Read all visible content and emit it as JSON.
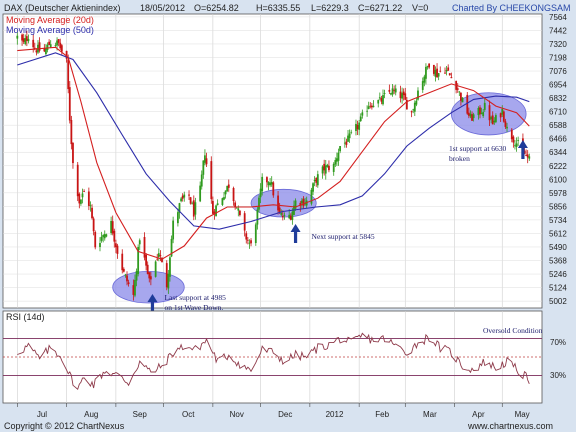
{
  "header": {
    "title": "DAX (Deutscher Aktienindex)",
    "date": "18/05/2012",
    "open": "O=6254.82",
    "high": "H=6335.55",
    "low": "L=6229.3",
    "close": "C=6271.22",
    "volume": "V=0",
    "credit": "Charted By CHEEKONGSAM"
  },
  "footer": {
    "copyright": "Copyright © 2012 ChartNexus",
    "url": "www.chartnexus.com"
  },
  "colors": {
    "background": "#d8e3f0",
    "plot": "#ffffff",
    "candle_up": "#2f9a1e",
    "candle_down": "#c81414",
    "ma20": "#d42020",
    "ma50": "#2d2daa",
    "rsi_line": "#8e3a4a",
    "rsi_level": "#7a2a5a",
    "highlight": "#8a8ae8"
  },
  "chart_data": [
    {
      "type": "candlestick",
      "title": "DAX (Deutscher Aktienindex)",
      "legend": [
        "Moving Average (20d)",
        "Moving Average (50d)"
      ],
      "legend_placement": "top-left",
      "x_tick_labels": [
        "Jul",
        "Aug",
        "Sep",
        "Oct",
        "Nov",
        "Dec",
        "2012",
        "Feb",
        "Mar",
        "Apr",
        "May"
      ],
      "y_tick_labels": [
        "5002",
        "5124",
        "5246",
        "5368",
        "5490",
        "5612",
        "5734",
        "5856",
        "5978",
        "6100",
        "6222",
        "6344",
        "6466",
        "6588",
        "6710",
        "6832",
        "6954",
        "7076",
        "7198",
        "7320",
        "7442",
        "7564"
      ],
      "ylim": [
        4940,
        7590
      ],
      "grid": true,
      "close_path": [
        {
          "x": "2011-07-01",
          "y": 7380
        },
        {
          "x": "2011-07-05",
          "y": 7320
        },
        {
          "x": "2011-07-08",
          "y": 7400
        },
        {
          "x": "2011-07-12",
          "y": 7280
        },
        {
          "x": "2011-07-18",
          "y": 7250
        },
        {
          "x": "2011-07-22",
          "y": 7340
        },
        {
          "x": "2011-07-27",
          "y": 7320
        },
        {
          "x": "2011-08-01",
          "y": 7150
        },
        {
          "x": "2011-08-03",
          "y": 6650
        },
        {
          "x": "2011-08-05",
          "y": 6240
        },
        {
          "x": "2011-08-09",
          "y": 5900
        },
        {
          "x": "2011-08-12",
          "y": 5980
        },
        {
          "x": "2011-08-16",
          "y": 5850
        },
        {
          "x": "2011-08-19",
          "y": 5500
        },
        {
          "x": "2011-08-24",
          "y": 5600
        },
        {
          "x": "2011-08-29",
          "y": 5700
        },
        {
          "x": "2011-09-02",
          "y": 5450
        },
        {
          "x": "2011-09-06",
          "y": 5250
        },
        {
          "x": "2011-09-12",
          "y": 5050
        },
        {
          "x": "2011-09-16",
          "y": 5580
        },
        {
          "x": "2011-09-22",
          "y": 5170
        },
        {
          "x": "2011-09-28",
          "y": 5450
        },
        {
          "x": "2011-10-03",
          "y": 5150
        },
        {
          "x": "2011-10-07",
          "y": 5700
        },
        {
          "x": "2011-10-12",
          "y": 5900
        },
        {
          "x": "2011-10-17",
          "y": 5950
        },
        {
          "x": "2011-10-20",
          "y": 5800
        },
        {
          "x": "2011-10-24",
          "y": 6000
        },
        {
          "x": "2011-10-27",
          "y": 6350
        },
        {
          "x": "2011-11-01",
          "y": 5800
        },
        {
          "x": "2011-11-07",
          "y": 5950
        },
        {
          "x": "2011-11-11",
          "y": 6050
        },
        {
          "x": "2011-11-16",
          "y": 5850
        },
        {
          "x": "2011-11-21",
          "y": 5600
        },
        {
          "x": "2011-11-25",
          "y": 5500
        },
        {
          "x": "2011-11-29",
          "y": 5800
        },
        {
          "x": "2011-12-02",
          "y": 6080
        },
        {
          "x": "2011-12-07",
          "y": 6100
        },
        {
          "x": "2011-12-12",
          "y": 5800
        },
        {
          "x": "2011-12-16",
          "y": 5750
        },
        {
          "x": "2011-12-20",
          "y": 5780
        },
        {
          "x": "2011-12-23",
          "y": 5900
        },
        {
          "x": "2011-12-30",
          "y": 5900
        },
        {
          "x": "2012-01-05",
          "y": 6100
        },
        {
          "x": "2012-01-10",
          "y": 6200
        },
        {
          "x": "2012-01-16",
          "y": 6220
        },
        {
          "x": "2012-01-20",
          "y": 6400
        },
        {
          "x": "2012-01-25",
          "y": 6450
        },
        {
          "x": "2012-02-01",
          "y": 6600
        },
        {
          "x": "2012-02-07",
          "y": 6780
        },
        {
          "x": "2012-02-14",
          "y": 6800
        },
        {
          "x": "2012-02-21",
          "y": 6900
        },
        {
          "x": "2012-02-28",
          "y": 6850
        },
        {
          "x": "2012-03-05",
          "y": 6700
        },
        {
          "x": "2012-03-09",
          "y": 6900
        },
        {
          "x": "2012-03-16",
          "y": 7150
        },
        {
          "x": "2012-03-21",
          "y": 7050
        },
        {
          "x": "2012-03-26",
          "y": 7100
        },
        {
          "x": "2012-04-02",
          "y": 6950
        },
        {
          "x": "2012-04-06",
          "y": 6800
        },
        {
          "x": "2012-04-11",
          "y": 6650
        },
        {
          "x": "2012-04-16",
          "y": 6700
        },
        {
          "x": "2012-04-20",
          "y": 6750
        },
        {
          "x": "2012-04-25",
          "y": 6600
        },
        {
          "x": "2012-05-01",
          "y": 6720
        },
        {
          "x": "2012-05-04",
          "y": 6550
        },
        {
          "x": "2012-05-09",
          "y": 6450
        },
        {
          "x": "2012-05-14",
          "y": 6350
        },
        {
          "x": "2012-05-18",
          "y": 6271.22
        }
      ],
      "ma20": [
        {
          "x": "2011-07-01",
          "y": 7260
        },
        {
          "x": "2011-07-25",
          "y": 7290
        },
        {
          "x": "2011-08-02",
          "y": 7200
        },
        {
          "x": "2011-08-10",
          "y": 6800
        },
        {
          "x": "2011-08-20",
          "y": 6250
        },
        {
          "x": "2011-09-01",
          "y": 5800
        },
        {
          "x": "2011-09-15",
          "y": 5450
        },
        {
          "x": "2011-09-30",
          "y": 5380
        },
        {
          "x": "2011-10-14",
          "y": 5500
        },
        {
          "x": "2011-10-28",
          "y": 5750
        },
        {
          "x": "2011-11-10",
          "y": 5850
        },
        {
          "x": "2011-11-25",
          "y": 5850
        },
        {
          "x": "2011-12-09",
          "y": 5870
        },
        {
          "x": "2011-12-23",
          "y": 5850
        },
        {
          "x": "2012-01-06",
          "y": 5930
        },
        {
          "x": "2012-01-20",
          "y": 6080
        },
        {
          "x": "2012-02-03",
          "y": 6350
        },
        {
          "x": "2012-02-17",
          "y": 6620
        },
        {
          "x": "2012-03-02",
          "y": 6800
        },
        {
          "x": "2012-03-16",
          "y": 6880
        },
        {
          "x": "2012-03-30",
          "y": 6960
        },
        {
          "x": "2012-04-13",
          "y": 6900
        },
        {
          "x": "2012-04-27",
          "y": 6760
        },
        {
          "x": "2012-05-10",
          "y": 6700
        },
        {
          "x": "2012-05-18",
          "y": 6580
        }
      ],
      "ma50": [
        {
          "x": "2011-07-01",
          "y": 7130
        },
        {
          "x": "2011-07-25",
          "y": 7240
        },
        {
          "x": "2011-08-05",
          "y": 7180
        },
        {
          "x": "2011-08-20",
          "y": 6880
        },
        {
          "x": "2011-09-05",
          "y": 6500
        },
        {
          "x": "2011-09-20",
          "y": 6150
        },
        {
          "x": "2011-10-05",
          "y": 5900
        },
        {
          "x": "2011-10-20",
          "y": 5680
        },
        {
          "x": "2011-11-05",
          "y": 5650
        },
        {
          "x": "2011-11-25",
          "y": 5720
        },
        {
          "x": "2011-12-15",
          "y": 5810
        },
        {
          "x": "2012-01-05",
          "y": 5850
        },
        {
          "x": "2012-01-20",
          "y": 5870
        },
        {
          "x": "2012-02-03",
          "y": 5950
        },
        {
          "x": "2012-02-17",
          "y": 6150
        },
        {
          "x": "2012-03-02",
          "y": 6400
        },
        {
          "x": "2012-03-16",
          "y": 6560
        },
        {
          "x": "2012-03-30",
          "y": 6700
        },
        {
          "x": "2012-04-13",
          "y": 6820
        },
        {
          "x": "2012-04-27",
          "y": 6850
        },
        {
          "x": "2012-05-10",
          "y": 6840
        },
        {
          "x": "2012-05-18",
          "y": 6800
        }
      ],
      "highlights": [
        {
          "x_from": "2011-08-30",
          "x_to": "2011-10-14",
          "y_from": 4985,
          "y_to": 5270
        },
        {
          "x_from": "2011-11-25",
          "x_to": "2012-01-05",
          "y_from": 5760,
          "y_to": 6010
        },
        {
          "x_from": "2012-03-30",
          "x_to": "2012-05-16",
          "y_from": 6500,
          "y_to": 6880
        }
      ],
      "annotations": [
        {
          "id": "last_support",
          "lines": [
            "Last support at 4985",
            "on 1st Wave Down."
          ],
          "x": "2011-09-24",
          "y": 4985
        },
        {
          "id": "next_support",
          "lines": [
            "Next support at 5845"
          ],
          "x": "2011-12-23",
          "y": 5845
        },
        {
          "id": "first_support",
          "lines": [
            "1st support at 6630",
            "broken"
          ],
          "x": "2012-05-14",
          "y": 6380
        }
      ]
    },
    {
      "type": "line",
      "title": "RSI (14d)",
      "levels": {
        "upper": 70,
        "mid": 50,
        "lower": 30
      },
      "level_labels": [
        "70%",
        "30%"
      ],
      "annotation": "Oversold Condition",
      "ylim": [
        0,
        100
      ],
      "values": [
        {
          "x": "2011-07-01",
          "y": 55
        },
        {
          "x": "2011-07-08",
          "y": 62
        },
        {
          "x": "2011-07-15",
          "y": 48
        },
        {
          "x": "2011-07-22",
          "y": 60
        },
        {
          "x": "2011-07-29",
          "y": 50
        },
        {
          "x": "2011-08-03",
          "y": 30
        },
        {
          "x": "2011-08-08",
          "y": 15
        },
        {
          "x": "2011-08-12",
          "y": 28
        },
        {
          "x": "2011-08-18",
          "y": 20
        },
        {
          "x": "2011-08-25",
          "y": 35
        },
        {
          "x": "2011-09-02",
          "y": 30
        },
        {
          "x": "2011-09-09",
          "y": 22
        },
        {
          "x": "2011-09-16",
          "y": 45
        },
        {
          "x": "2011-09-23",
          "y": 33
        },
        {
          "x": "2011-09-30",
          "y": 40
        },
        {
          "x": "2011-10-07",
          "y": 55
        },
        {
          "x": "2011-10-14",
          "y": 62
        },
        {
          "x": "2011-10-21",
          "y": 58
        },
        {
          "x": "2011-10-28",
          "y": 68
        },
        {
          "x": "2011-11-04",
          "y": 45
        },
        {
          "x": "2011-11-11",
          "y": 52
        },
        {
          "x": "2011-11-18",
          "y": 42
        },
        {
          "x": "2011-11-25",
          "y": 35
        },
        {
          "x": "2011-12-02",
          "y": 58
        },
        {
          "x": "2011-12-09",
          "y": 55
        },
        {
          "x": "2011-12-16",
          "y": 45
        },
        {
          "x": "2011-12-23",
          "y": 52
        },
        {
          "x": "2011-12-30",
          "y": 50
        },
        {
          "x": "2012-01-06",
          "y": 60
        },
        {
          "x": "2012-01-13",
          "y": 63
        },
        {
          "x": "2012-01-20",
          "y": 70
        },
        {
          "x": "2012-01-27",
          "y": 65
        },
        {
          "x": "2012-02-03",
          "y": 73
        },
        {
          "x": "2012-02-10",
          "y": 68
        },
        {
          "x": "2012-02-17",
          "y": 70
        },
        {
          "x": "2012-02-24",
          "y": 62
        },
        {
          "x": "2012-03-02",
          "y": 55
        },
        {
          "x": "2012-03-09",
          "y": 65
        },
        {
          "x": "2012-03-16",
          "y": 72
        },
        {
          "x": "2012-03-23",
          "y": 60
        },
        {
          "x": "2012-03-30",
          "y": 55
        },
        {
          "x": "2012-04-06",
          "y": 40
        },
        {
          "x": "2012-04-13",
          "y": 36
        },
        {
          "x": "2012-04-20",
          "y": 45
        },
        {
          "x": "2012-04-27",
          "y": 38
        },
        {
          "x": "2012-05-04",
          "y": 45
        },
        {
          "x": "2012-05-11",
          "y": 35
        },
        {
          "x": "2012-05-18",
          "y": 25
        }
      ]
    }
  ]
}
